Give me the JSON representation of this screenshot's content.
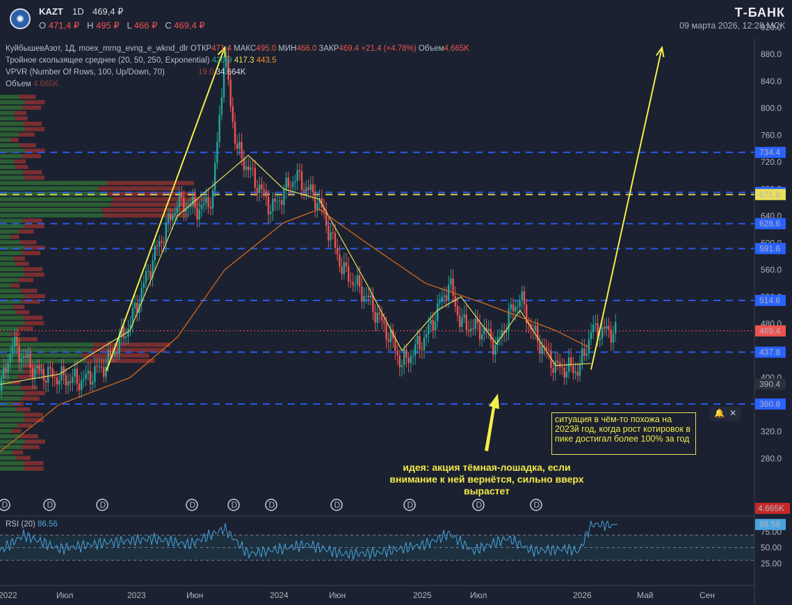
{
  "header": {
    "ticker": "KAZT",
    "interval": "1D",
    "price": "469,4 ₽",
    "o_label": "O",
    "o_val": "471,4 ₽",
    "h_label": "H",
    "h_val": "495 ₽",
    "l_label": "L",
    "l_val": "466 ₽",
    "c_label": "C",
    "c_val": "469,4 ₽",
    "brand": "Т-БАНК",
    "datetime": "09 марта 2026, 12:28 МСК"
  },
  "legend": {
    "main_name": "КуйбышевАзот, 1Д, moex_mrng_evng_e_wknd_dlr",
    "open_k": "ОТКР",
    "open_v": "471.4",
    "high_k": "МАКС",
    "high_v": "495.0",
    "low_k": "МИН",
    "low_v": "466.0",
    "close_k": "ЗАКР",
    "close_v": "469.4",
    "change": "+21.4 (+4.78%)",
    "vol_k": "Объем",
    "vol_v": "4.665K",
    "ema_name": "Тройное скользящее среднее (20, 50, 250, Exponential)",
    "ema1": "420.9",
    "ema2": "417.3",
    "ema3": "443.5",
    "vpvr_name": "VPVR (Number Of Rows, 100, Up/Down, 70)",
    "vpvr_v1": "19.0",
    "vpvr_v2": "34.664K",
    "vol2_k": "Объем",
    "vol2_v": "4.665K",
    "rsi_name": "RSI (20)",
    "rsi_v": "86.56"
  },
  "annotations": {
    "note": "ситуация в чём-то похожа на 2023й год, когда рост котировок в пике достигал более 100% за год",
    "idea": "идея: акция тёмная-лошадка, если внимание к ней вернётся, сильно вверх вырастет"
  },
  "colors": {
    "bg": "#1b2130",
    "up": "#26a69a",
    "down": "#ef5350",
    "ema20": "#e8e05a",
    "ema250": "#d2691e",
    "level_blue": "#2962ff",
    "level_yellow": "#e8e05a",
    "rsi": "#4aa3df",
    "arrow": "#f5ef4a"
  },
  "chart_data": {
    "type": "candlestick",
    "ylim": [
      240,
      940
    ],
    "y_ticks": [
      "920.0",
      "880.0",
      "840.0",
      "800.0",
      "760.0",
      "720.0",
      "680.0",
      "640.0",
      "600.0",
      "560.0",
      "520.0",
      "480.0",
      "440.0",
      "400.0",
      "360.0",
      "320.0",
      "280.0"
    ],
    "x_ticks": [
      "2022",
      "Июл",
      "2023",
      "Июн",
      "2024",
      "Июн",
      "2025",
      "Июл",
      "2026",
      "Май",
      "Сен"
    ],
    "levels": [
      {
        "value": 734.4,
        "label": "734.4",
        "style": "blue"
      },
      {
        "value": 675.0,
        "label": "675.0",
        "style": "blue"
      },
      {
        "value": 671.8,
        "label": "671.8",
        "style": "yellow"
      },
      {
        "value": 628.6,
        "label": "628.6",
        "style": "blue"
      },
      {
        "value": 591.6,
        "label": "591.6",
        "style": "blue"
      },
      {
        "value": 514.6,
        "label": "514.6",
        "style": "blue"
      },
      {
        "value": 437.8,
        "label": "437.8",
        "style": "blue"
      },
      {
        "value": 360.8,
        "label": "360.8",
        "style": "blue"
      }
    ],
    "price_label": {
      "value": 469.4,
      "label": "469.4"
    },
    "misc_label": {
      "value": 390.4,
      "label": "390.4"
    },
    "vol_label": "4.665K",
    "rsi_label": "86.56",
    "price_path": [
      [
        "2022-01",
        380
      ],
      [
        "2022-02",
        450
      ],
      [
        "2022-03",
        430
      ],
      [
        "2022-04",
        410
      ],
      [
        "2022-06",
        400
      ],
      [
        "2022-08",
        395
      ],
      [
        "2022-10",
        420
      ],
      [
        "2022-12",
        480
      ],
      [
        "2023-02",
        580
      ],
      [
        "2023-04",
        660
      ],
      [
        "2023-06",
        650
      ],
      [
        "2023-07",
        670
      ],
      [
        "2023-08",
        880
      ],
      [
        "2023-09",
        740
      ],
      [
        "2023-11",
        680
      ],
      [
        "2023-12",
        650
      ],
      [
        "2024-02",
        700
      ],
      [
        "2024-03",
        680
      ],
      [
        "2024-04",
        660
      ],
      [
        "2024-06",
        560
      ],
      [
        "2024-08",
        520
      ],
      [
        "2024-10",
        460
      ],
      [
        "2024-11",
        420
      ],
      [
        "2025-01",
        460
      ],
      [
        "2025-03",
        540
      ],
      [
        "2025-04",
        480
      ],
      [
        "2025-06",
        470
      ],
      [
        "2025-07",
        445
      ],
      [
        "2025-08",
        490
      ],
      [
        "2025-09",
        520
      ],
      [
        "2025-10",
        470
      ],
      [
        "2025-12",
        415
      ],
      [
        "2026-02",
        412
      ],
      [
        "2026-03",
        469
      ]
    ],
    "ema20": [
      [
        "2022-01",
        390
      ],
      [
        "2022-06",
        405
      ],
      [
        "2022-12",
        470
      ],
      [
        "2023-04",
        640
      ],
      [
        "2023-08",
        700
      ],
      [
        "2023-10",
        730
      ],
      [
        "2024-01",
        680
      ],
      [
        "2024-04",
        665
      ],
      [
        "2024-08",
        540
      ],
      [
        "2024-11",
        440
      ],
      [
        "2025-02",
        500
      ],
      [
        "2025-04",
        520
      ],
      [
        "2025-07",
        450
      ],
      [
        "2025-09",
        500
      ],
      [
        "2025-12",
        418
      ],
      [
        "2026-03",
        421
      ]
    ],
    "ema250": [
      [
        "2022-01",
        290
      ],
      [
        "2022-06",
        360
      ],
      [
        "2022-12",
        400
      ],
      [
        "2023-04",
        460
      ],
      [
        "2023-08",
        560
      ],
      [
        "2024-01",
        630
      ],
      [
        "2024-04",
        650
      ],
      [
        "2024-08",
        600
      ],
      [
        "2025-01",
        540
      ],
      [
        "2025-06",
        510
      ],
      [
        "2025-12",
        470
      ],
      [
        "2026-03",
        443.5
      ]
    ],
    "projection": [
      [
        "2026-03",
        412
      ],
      [
        "2026-09",
        890
      ]
    ],
    "past_move": [
      [
        "2022-10",
        410
      ],
      [
        "2023-08",
        890
      ]
    ],
    "rsi_ticks": [
      "75.00",
      "50.00",
      "25.00"
    ],
    "rsi_levels": [
      70,
      50,
      30
    ],
    "rsi_value": 86.56,
    "rsi_path": [
      [
        "2022-01",
        45
      ],
      [
        "2022-03",
        70
      ],
      [
        "2022-06",
        48
      ],
      [
        "2022-10",
        58
      ],
      [
        "2023-02",
        64
      ],
      [
        "2023-05",
        55
      ],
      [
        "2023-08",
        80
      ],
      [
        "2023-10",
        40
      ],
      [
        "2024-03",
        55
      ],
      [
        "2024-06",
        40
      ],
      [
        "2024-09",
        42
      ],
      [
        "2025-01",
        55
      ],
      [
        "2025-03",
        72
      ],
      [
        "2025-05",
        45
      ],
      [
        "2025-08",
        65
      ],
      [
        "2025-10",
        45
      ],
      [
        "2026-01",
        48
      ],
      [
        "2026-02",
        44
      ],
      [
        "2026-03",
        86.56
      ]
    ]
  }
}
